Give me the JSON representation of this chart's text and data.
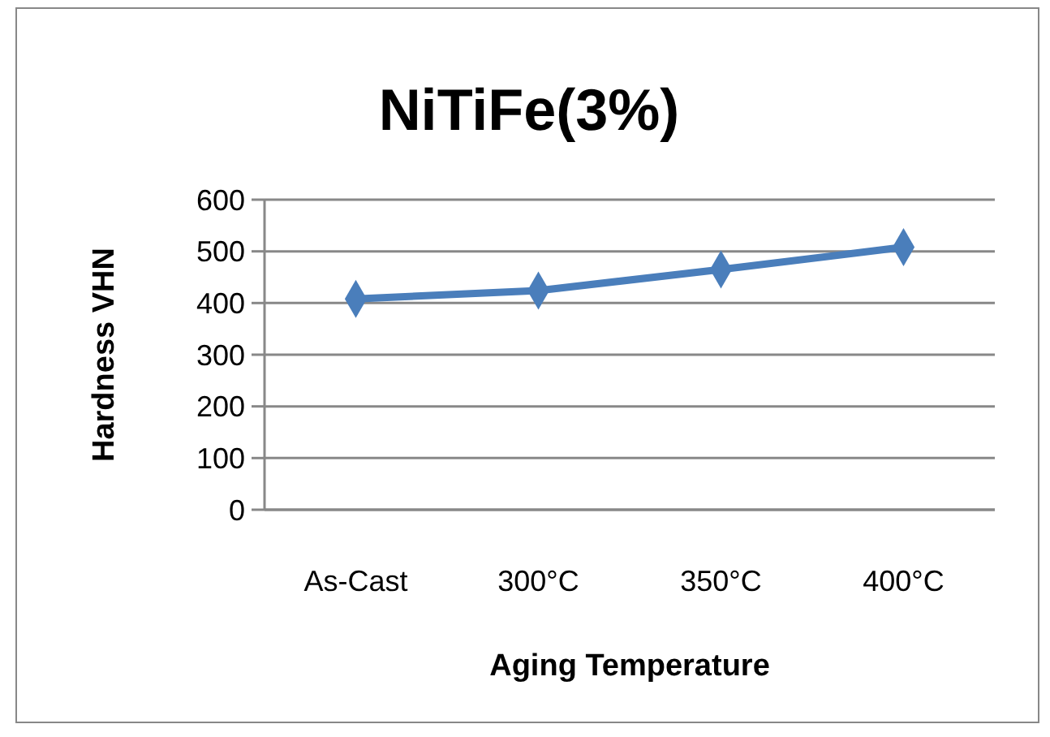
{
  "chart_data": {
    "type": "line",
    "title": "NiTiFe(3%)",
    "xlabel": "Aging Temperature",
    "ylabel": "Hardness VHN",
    "categories": [
      "As-Cast",
      "300°C",
      "350°C",
      "400°C"
    ],
    "series": [
      {
        "color": "#4a7ebb",
        "values": [
          408,
          424,
          465,
          508
        ]
      }
    ],
    "ylim": [
      0,
      600
    ],
    "yticks": [
      0,
      100,
      200,
      300,
      400,
      500,
      600
    ],
    "grid": "y",
    "marker": "diamond",
    "line_style": "solid"
  }
}
